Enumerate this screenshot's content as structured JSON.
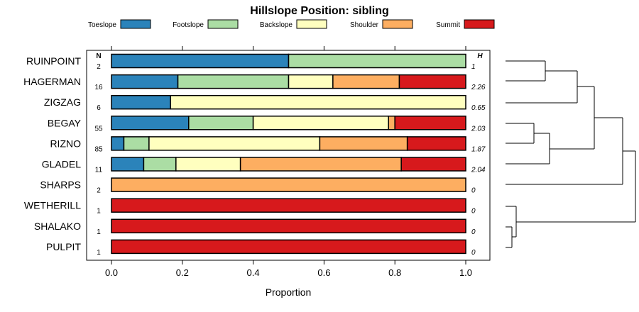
{
  "chart_data": {
    "type": "bar",
    "stacked": true,
    "orientation": "horizontal",
    "title": "Hillslope Position: sibling",
    "xlabel": "Proportion",
    "xlim": [
      0,
      1
    ],
    "x_ticks": [
      "0.0",
      "0.2",
      "0.4",
      "0.6",
      "0.8",
      "1.0"
    ],
    "n_header": "N",
    "h_header": "H",
    "legend_position": "top",
    "series": [
      {
        "name": "Toeslope",
        "color": "#2b83ba"
      },
      {
        "name": "Footslope",
        "color": "#abdda4"
      },
      {
        "name": "Backslope",
        "color": "#ffffbf"
      },
      {
        "name": "Shoulder",
        "color": "#fdae61"
      },
      {
        "name": "Summit",
        "color": "#d7191c"
      }
    ],
    "categories": [
      {
        "name": "RUINPOINT",
        "n": "2",
        "h": "1",
        "values": [
          0.5,
          0.5,
          0,
          0,
          0
        ]
      },
      {
        "name": "HAGERMAN",
        "n": "16",
        "h": "2.26",
        "values": [
          0.1875,
          0.3125,
          0.125,
          0.1875,
          0.1875
        ]
      },
      {
        "name": "ZIGZAG",
        "n": "6",
        "h": "0.65",
        "values": [
          0.1667,
          0,
          0.8333,
          0,
          0
        ]
      },
      {
        "name": "BEGAY",
        "n": "55",
        "h": "2.03",
        "values": [
          0.218,
          0.182,
          0.382,
          0.018,
          0.2
        ]
      },
      {
        "name": "RIZNO",
        "n": "85",
        "h": "1.87",
        "values": [
          0.035,
          0.071,
          0.482,
          0.247,
          0.165
        ]
      },
      {
        "name": "GLADEL",
        "n": "11",
        "h": "2.04",
        "values": [
          0.091,
          0.091,
          0.182,
          0.454,
          0.182
        ]
      },
      {
        "name": "SHARPS",
        "n": "2",
        "h": "0",
        "values": [
          0,
          0,
          0,
          1,
          0
        ]
      },
      {
        "name": "WETHERILL",
        "n": "1",
        "h": "0",
        "values": [
          0,
          0,
          0,
          0,
          1
        ]
      },
      {
        "name": "SHALAKO",
        "n": "1",
        "h": "0",
        "values": [
          0,
          0,
          0,
          0,
          1
        ]
      },
      {
        "name": "PULPIT",
        "n": "1",
        "h": "0",
        "values": [
          0,
          0,
          0,
          0,
          1
        ]
      }
    ]
  }
}
